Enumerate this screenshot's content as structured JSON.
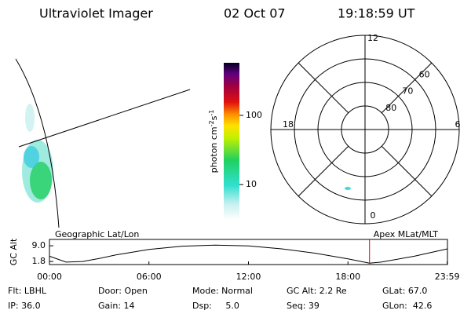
{
  "header": {
    "title": "Ultraviolet Imager",
    "date": "02 Oct 07",
    "time": "19:18:59 UT"
  },
  "colorbar": {
    "label_parts": [
      "photon cm",
      "-2",
      "s",
      "-1"
    ],
    "range": [
      3.1,
      575
    ],
    "log": true,
    "ticks": [
      10,
      100
    ]
  },
  "polar": {
    "rlim": [
      90,
      50
    ],
    "lat_ticks": [
      60,
      70,
      80
    ],
    "mlt_ticks": [
      12,
      6,
      0,
      18
    ]
  },
  "altitude": {
    "title_left": "Geographic Lat/Lon",
    "title_right": "Apex MLat/MLT",
    "ylabel": "GC Alt",
    "ylim": [
      0.4,
      11.9
    ],
    "yticks": [
      {
        "value": 9,
        "label": "9.0"
      },
      1.8
    ],
    "xlim": [
      0,
      24
    ],
    "xticks": [
      {
        "value": 0,
        "label": "00:00"
      },
      {
        "value": 6,
        "label": "06:00"
      },
      {
        "value": 12,
        "label": "12:00"
      },
      {
        "value": 18,
        "label": "18:00"
      },
      {
        "value": 23.983,
        "label": "23:59"
      }
    ],
    "x": [
      0,
      1,
      2,
      3,
      4,
      6,
      8,
      10,
      12,
      14,
      16,
      18,
      19.3,
      20,
      22,
      24
    ],
    "values": [
      4.2,
      1.5,
      1.8,
      3.2,
      4.8,
      7.3,
      8.8,
      9.3,
      8.9,
      7.6,
      5.6,
      3.0,
      1.0,
      1.5,
      4.2,
      7.6
    ],
    "marker": 19.3,
    "marker_color": "#e00000"
  },
  "footer": [
    [
      "Flt: LBHL",
      "Door: Open",
      "Mode: Normal",
      "GC Alt: 2.2 Re",
      "GLat: 67.0"
    ],
    [
      "IP: 36.0",
      "Gain: 14",
      "Dsp:     5.0",
      "Seq: 39",
      "GLon:  42.6"
    ]
  ]
}
